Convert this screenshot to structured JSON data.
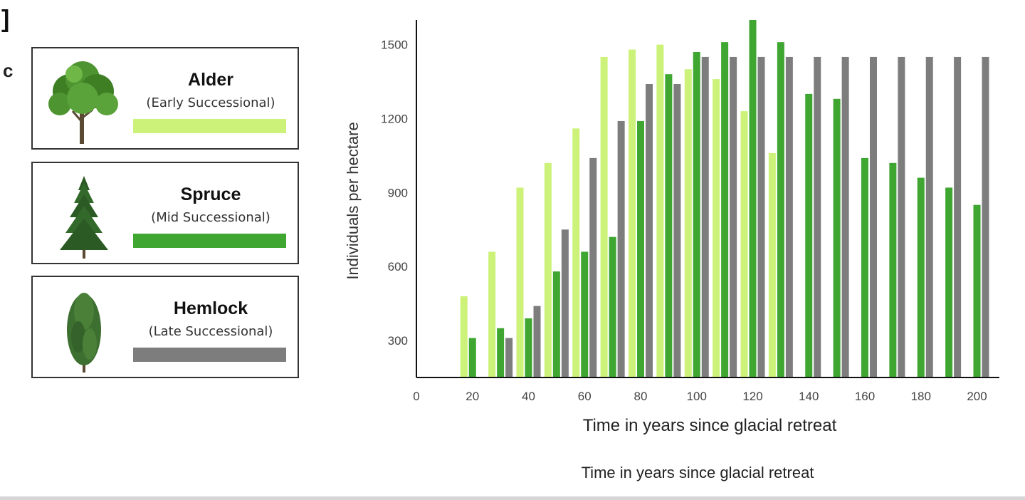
{
  "fragments": {
    "bracket": "]",
    "c": "c"
  },
  "legend": [
    {
      "name": "Alder",
      "stage": "(Early Successional)",
      "color": "#ccf27a",
      "icon": "deciduous-tree-icon"
    },
    {
      "name": "Spruce",
      "stage": "(Mid Successional)",
      "color": "#3ea631",
      "icon": "spruce-tree-icon"
    },
    {
      "name": "Hemlock",
      "stage": "(Late Successional)",
      "color": "#7d7d7d",
      "icon": "hemlock-tree-icon"
    }
  ],
  "chart_data": {
    "type": "bar",
    "title": "",
    "xlabel": "Time in years since glacial retreat",
    "ylabel": "Individuals per hectare",
    "xlim": [
      0,
      208
    ],
    "ylim": [
      150,
      1600
    ],
    "yticks": [
      300,
      600,
      900,
      1200,
      1500
    ],
    "xticks": [
      0,
      20,
      40,
      60,
      80,
      100,
      120,
      140,
      160,
      180,
      200
    ],
    "grid": false,
    "legend_position": "left",
    "categories": [
      20,
      30,
      40,
      50,
      60,
      70,
      80,
      90,
      100,
      110,
      120,
      130,
      140,
      150,
      160,
      170,
      180,
      190,
      200
    ],
    "series": [
      {
        "name": "Alder",
        "color": "#ccf27a",
        "values": [
          480,
          660,
          920,
          1020,
          1160,
          1450,
          1480,
          1500,
          1400,
          1360,
          1230,
          1060,
          null,
          null,
          null,
          null,
          null,
          null,
          null
        ]
      },
      {
        "name": "Spruce",
        "color": "#3ea631",
        "values": [
          310,
          350,
          390,
          580,
          660,
          720,
          1190,
          1380,
          1470,
          1510,
          1600,
          1510,
          1300,
          1280,
          1040,
          1020,
          960,
          920,
          850
        ]
      },
      {
        "name": "Hemlock",
        "color": "#7d7d7d",
        "values": [
          null,
          310,
          440,
          750,
          1040,
          1190,
          1340,
          1340,
          1450,
          1450,
          1450,
          1450,
          1450,
          1450,
          1450,
          1450,
          1450,
          1450,
          1450
        ]
      }
    ]
  },
  "footer_title": "Time in years since glacial retreat"
}
